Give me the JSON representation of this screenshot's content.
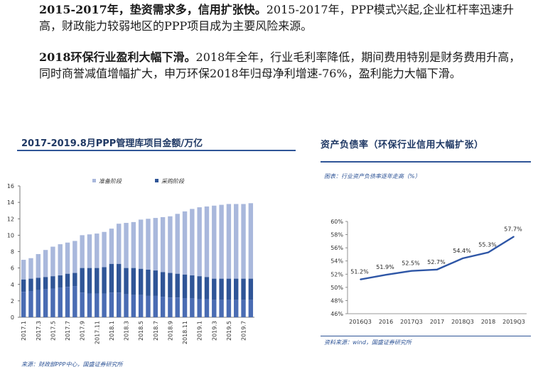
{
  "paragraphs": [
    {
      "lead": "2015-2017年，垫资需求多，信用扩张快。",
      "body": "2015-2017年，PPP模式兴起,企业杠杆率迅速升高，财政能力较弱地区的PPP项目成为主要风险来源。"
    },
    {
      "lead": "2018环保行业盈利大幅下滑。",
      "body": "2018年全年，行业毛利率降低，期间费用特别是财务费用升高，同时商誉减值增幅扩大，申万环保2018年归母净利增速-76%，盈利能力大幅下滑。"
    }
  ],
  "left_chart": {
    "title": "2017-2019.8月PPP管理库项目金额/万亿",
    "source": "来源：财政部PPP中心，国盛证券研究所"
  },
  "right_chart": {
    "title": "资产负债率（环保行业信用大幅扩张）",
    "figure_label": "图表：行业资产负债率逐年走高（%）",
    "source": "资料来源：wind，国盛证券研究所"
  },
  "colors": {
    "series_light": "#a9b8dc",
    "series_dark": "#2f5597",
    "line": "#2e56a6",
    "accent": "#1f3864"
  },
  "chart_data": [
    {
      "type": "bar",
      "stacked": true,
      "categories": [
        "2017.1",
        "2017.2",
        "2017.3",
        "2017.4",
        "2017.5",
        "2017.6",
        "2017.7",
        "2017.8",
        "2017.9",
        "2017.10",
        "2017.11",
        "2017.12",
        "2018.1",
        "2018.2",
        "2018.3",
        "2018.4",
        "2018.5",
        "2018.6",
        "2018.7",
        "2018.8",
        "2018.9",
        "2018.10",
        "2018.11",
        "2018.12",
        "2019.1",
        "2019.2",
        "2019.3",
        "2019.4",
        "2019.5",
        "2019.6",
        "2019.7",
        "2019.8"
      ],
      "tick_labels": [
        "2017.1",
        "2017.3",
        "2017.5",
        "2017.7",
        "2017.9",
        "2017.11",
        "2018.1",
        "2018.3",
        "2018.5",
        "2018.7",
        "2018.9",
        "2018.11",
        "2019.1",
        "2019.3",
        "2019.5",
        "2019.7"
      ],
      "series": [
        {
          "name": "采购阶段",
          "values": [
            3.1,
            3.2,
            3.3,
            3.4,
            3.5,
            3.6,
            3.7,
            3.8,
            3.0,
            2.9,
            2.9,
            2.9,
            3.0,
            3.0,
            2.8,
            2.7,
            2.7,
            2.6,
            2.6,
            2.5,
            2.4,
            2.4,
            2.3,
            2.3,
            2.2,
            2.2,
            2.1,
            2.1,
            2.1,
            2.1,
            2.1,
            2.1
          ]
        },
        {
          "name": "准备阶段",
          "values": [
            3.9,
            4.0,
            4.4,
            4.8,
            5.1,
            5.3,
            5.4,
            5.5,
            7.0,
            7.2,
            7.3,
            7.5,
            7.8,
            8.4,
            8.7,
            8.9,
            9.2,
            9.4,
            9.5,
            9.7,
            9.9,
            10.2,
            10.6,
            10.9,
            11.2,
            11.3,
            11.5,
            11.6,
            11.7,
            11.7,
            11.7,
            11.8
          ]
        }
      ],
      "dark_segment_values": [
        1.5,
        1.5,
        1.5,
        1.5,
        1.5,
        1.5,
        1.6,
        1.6,
        3.0,
        3.1,
        3.1,
        3.2,
        3.5,
        3.5,
        3.2,
        3.3,
        3.2,
        3.2,
        3.1,
        3.0,
        3.0,
        2.9,
        2.9,
        2.8,
        2.8,
        2.7,
        2.6,
        2.6,
        2.6,
        2.6,
        2.6,
        2.6
      ],
      "ylim": [
        0,
        16
      ],
      "yticks": [
        0,
        2,
        4,
        6,
        8,
        10,
        12,
        14,
        16
      ],
      "grid": false,
      "legend_position": "top-center"
    },
    {
      "type": "line",
      "x": [
        "2016Q3",
        "2016",
        "2017Q3",
        "2017",
        "2018Q3",
        "2018",
        "2019Q3"
      ],
      "values": [
        51.2,
        51.9,
        52.5,
        52.7,
        54.4,
        55.3,
        57.7
      ],
      "data_labels": [
        "51.2%",
        "51.9%",
        "52.5%",
        "52.7%",
        "54.4%",
        "55.3%",
        "57.7%"
      ],
      "yticks": [
        "46%",
        "48%",
        "50%",
        "52%",
        "54%",
        "56%",
        "58%",
        "60%"
      ],
      "ylim": [
        46,
        60
      ],
      "grid": false
    }
  ]
}
